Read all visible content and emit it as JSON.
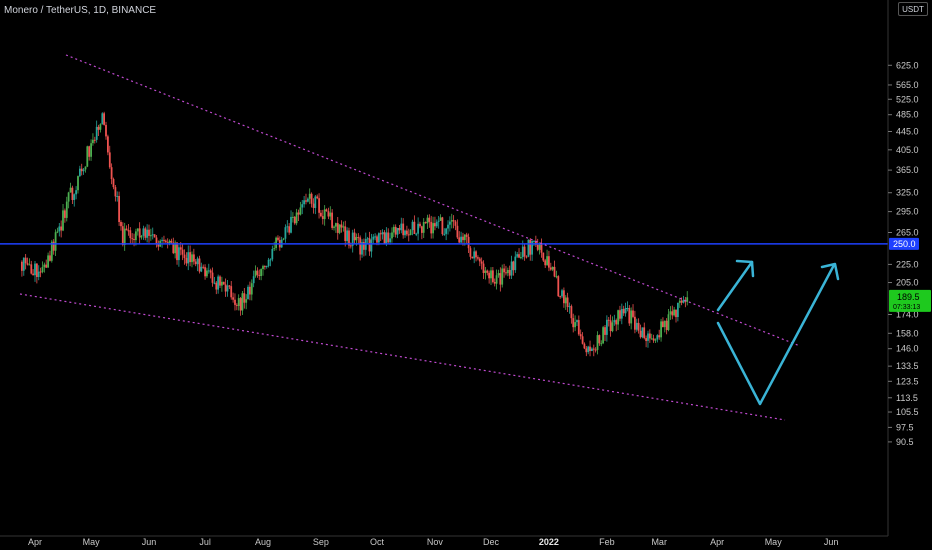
{
  "header": {
    "symbol_label": "Monero / TetherUS, 1D, BINANCE",
    "currency_unit": "USDT"
  },
  "colors": {
    "background": "#000000",
    "up": "#26a69a",
    "up_bright": "#4caf50",
    "down": "#ef5350",
    "support_line": "#1e40ff",
    "trendline": "#c04ad0",
    "arrow": "#3ab4d6"
  },
  "chart_data": {
    "type": "candlestick",
    "x_tick_labels": [
      "Apr",
      "May",
      "Jun",
      "Jul",
      "Aug",
      "Sep",
      "Oct",
      "Nov",
      "Dec",
      "2022",
      "Feb",
      "Mar",
      "Apr",
      "May",
      "Jun"
    ],
    "y_tick_labels": [
      "625.0",
      "565.0",
      "525.0",
      "485.0",
      "445.0",
      "405.0",
      "365.0",
      "325.0",
      "295.0",
      "265.0",
      "225.0",
      "205.0",
      "174.0",
      "158.0",
      "146.0",
      "133.5",
      "123.5",
      "113.5",
      "105.5",
      "97.5",
      "90.5"
    ],
    "y_scale": "log",
    "ylim": [
      85,
      650
    ],
    "horizontal_level": {
      "value": 250.0,
      "label": "250.0"
    },
    "current_price": {
      "value": 189.5,
      "label": "189.5",
      "countdown": "07:33:13"
    },
    "series_anchor_closes": [
      {
        "date": "2021-03-25",
        "close": 228
      },
      {
        "date": "2021-04-05",
        "close": 215
      },
      {
        "date": "2021-04-20",
        "close": 320
      },
      {
        "date": "2021-05-07",
        "close": 480
      },
      {
        "date": "2021-05-18",
        "close": 260
      },
      {
        "date": "2021-05-28",
        "close": 270
      },
      {
        "date": "2021-06-20",
        "close": 235
      },
      {
        "date": "2021-07-20",
        "close": 185
      },
      {
        "date": "2021-08-25",
        "close": 320
      },
      {
        "date": "2021-09-22",
        "close": 245
      },
      {
        "date": "2021-10-20",
        "close": 275
      },
      {
        "date": "2021-11-10",
        "close": 275
      },
      {
        "date": "2021-12-04",
        "close": 205
      },
      {
        "date": "2021-12-25",
        "close": 255
      },
      {
        "date": "2022-01-22",
        "close": 145
      },
      {
        "date": "2022-02-10",
        "close": 180
      },
      {
        "date": "2022-02-24",
        "close": 150
      },
      {
        "date": "2022-03-16",
        "close": 189.5
      }
    ]
  }
}
